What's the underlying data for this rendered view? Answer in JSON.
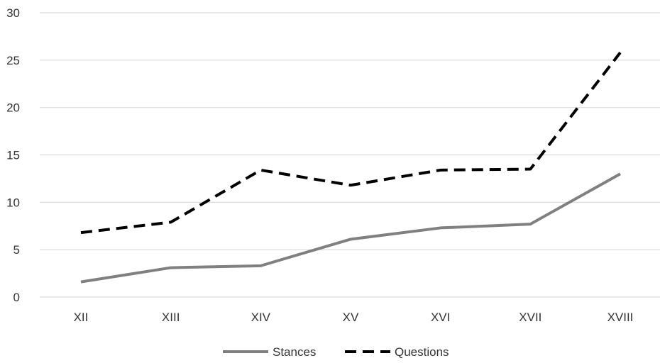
{
  "chart_data": {
    "type": "line",
    "categories": [
      "XII",
      "XIII",
      "XIV",
      "XV",
      "XVI",
      "XVII",
      "XVIII"
    ],
    "series": [
      {
        "name": "Stances",
        "values": [
          1.6,
          3.1,
          3.3,
          6.1,
          7.3,
          7.7,
          13.0
        ],
        "color": "#808080",
        "style": "solid"
      },
      {
        "name": "Questions",
        "values": [
          6.8,
          7.9,
          13.4,
          11.8,
          13.4,
          13.5,
          25.8
        ],
        "color": "#000000",
        "style": "dashed"
      }
    ],
    "ylim": [
      0,
      30
    ],
    "yticks": [
      "0",
      "5",
      "10",
      "15",
      "20",
      "25",
      "30"
    ],
    "grid": true,
    "legend_position": "bottom"
  }
}
